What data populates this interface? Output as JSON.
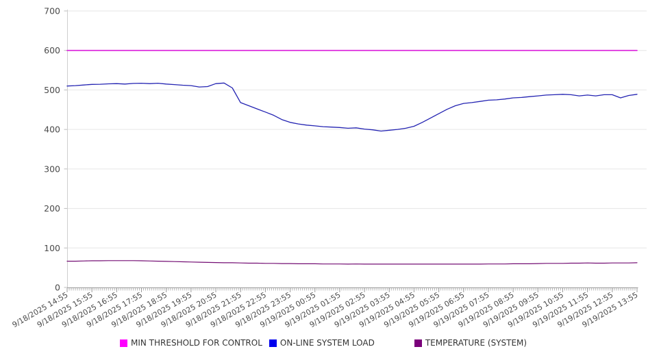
{
  "chart_data": {
    "type": "line",
    "title": "",
    "xlabel": "",
    "ylabel": "",
    "ylim": [
      0,
      700
    ],
    "yticks": [
      0,
      100,
      200,
      300,
      400,
      500,
      600,
      700
    ],
    "grid": "horizontal",
    "legend_position": "bottom",
    "x_labels": [
      "9/18/2025 14:55",
      "9/18/2025 15:55",
      "9/18/2025 16:55",
      "9/18/2025 17:55",
      "9/18/2025 18:55",
      "9/18/2025 19:55",
      "9/18/2025 20:55",
      "9/18/2025 21:55",
      "9/18/2025 22:55",
      "9/18/2025 23:55",
      "9/19/2025 00:55",
      "9/19/2025 01:55",
      "9/19/2025 02:55",
      "9/19/2025 03:55",
      "9/19/2025 04:55",
      "9/19/2025 05:55",
      "9/19/2025 06:55",
      "9/19/2025 07:55",
      "9/19/2025 08:55",
      "9/19/2025 09:55",
      "9/19/2025 10:55",
      "9/19/2025 11:55",
      "9/19/2025 12:55",
      "9/19/2025 13:55"
    ],
    "series": [
      {
        "name": "MIN THRESHOLD FOR CONTROL",
        "color": "#da1ada",
        "legend_color": "#ff00ff",
        "line_width": 1.6,
        "values": [
          600,
          600
        ]
      },
      {
        "name": "ON-LINE SYSTEM LOAD",
        "color": "#2323b2",
        "legend_color": "#0000ee",
        "line_width": 1.3,
        "values": [
          510,
          511,
          512.5,
          514,
          514.5,
          515.5,
          516,
          515,
          516.5,
          517,
          516,
          517,
          515,
          513.5,
          512,
          511,
          507.5,
          508.5,
          516,
          517.5,
          505,
          468,
          460,
          452,
          444,
          436,
          425,
          418,
          414,
          411,
          409,
          407,
          406,
          405,
          403,
          404,
          401,
          399,
          396,
          398,
          400,
          403,
          408,
          418,
          429,
          440,
          451,
          460,
          466,
          468,
          471,
          474,
          475,
          477,
          480,
          481,
          483,
          485,
          487,
          488,
          489,
          488,
          485,
          487,
          485,
          488,
          488,
          480,
          486,
          489
        ]
      },
      {
        "name": "TEMPERATURE (SYSTEM)",
        "color": "#730d73",
        "legend_color": "#7a007a",
        "line_width": 1.2,
        "values": [
          66.5,
          66.5,
          67,
          67.5,
          67.5,
          68,
          68,
          68,
          68,
          67.5,
          67,
          66.5,
          66,
          65.5,
          65,
          64.5,
          64,
          63.5,
          63,
          62.5,
          62.5,
          62,
          61.5,
          61.5,
          61,
          61,
          60.5,
          60.5,
          60,
          60,
          60,
          59.5,
          59.5,
          59.5,
          59,
          59.5,
          59,
          59,
          59,
          59,
          59,
          59,
          59,
          59,
          59,
          59,
          59,
          59,
          59,
          59,
          59,
          59.5,
          59.5,
          59.5,
          60,
          60,
          60,
          60.5,
          61,
          61,
          61,
          61.5,
          61.5,
          62,
          61.5,
          61.5,
          62,
          62,
          62,
          62.5
        ]
      }
    ]
  }
}
